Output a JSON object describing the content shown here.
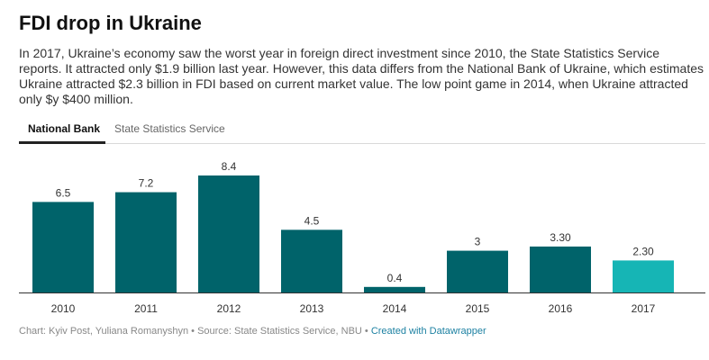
{
  "header": {
    "title": "FDI drop in Ukraine",
    "description": "In 2017, Ukraine’s economy saw the worst year in foreign direct investment since 2010, the State Statistics Service reports. It attracted only $1.9 billion last year. However, this data differs from the National Bank of Ukraine, which estimates Ukraine attracted $2.3 billion in FDI based on current market value. The low point game in 2014, when Ukraine attracted only $y $400 million."
  },
  "tabs": [
    {
      "label": "National Bank",
      "active": true
    },
    {
      "label": "State Statistics Service",
      "active": false
    }
  ],
  "chart_data": {
    "type": "bar",
    "categories": [
      "2010",
      "2011",
      "2012",
      "2013",
      "2014",
      "2015",
      "2016",
      "2017"
    ],
    "values": [
      6.5,
      7.2,
      8.4,
      4.5,
      0.4,
      3,
      3.3,
      2.3
    ],
    "value_labels": [
      "6.5",
      "7.2",
      "8.4",
      "4.5",
      "0.4",
      "3",
      "3.30",
      "2.30"
    ],
    "highlight_index": 7,
    "colors": {
      "bar": "#00636a",
      "highlight": "#16b5b5",
      "baseline": "#333333"
    },
    "ylim": [
      0,
      8.4
    ],
    "grid": false,
    "title": "",
    "xlabel": "",
    "ylabel": ""
  },
  "footer": {
    "source": "Chart: Kyiv Post, Yuliana Romanyshyn • Source: State Statistics Service, NBU • ",
    "credit_link": "Created with Datawrapper"
  }
}
